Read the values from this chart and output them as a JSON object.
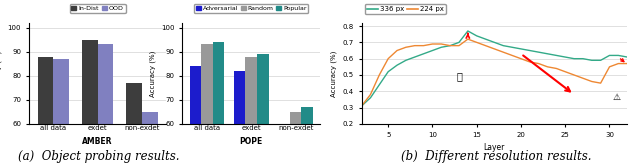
{
  "amber": {
    "categories": [
      "all data",
      "exdet",
      "non-exdet"
    ],
    "xlabel": "AMBER",
    "ylabel": "Accuracy (%)",
    "ylim": [
      60,
      102
    ],
    "yticks": [
      60,
      70,
      80,
      90,
      100
    ],
    "yticklabels": [
      "60",
      "70",
      "80",
      "90",
      "100"
    ],
    "series": {
      "In-Dist": {
        "color": "#3d3d3d",
        "values": [
          88,
          95,
          77
        ]
      },
      "OOD": {
        "color": "#8080c0",
        "values": [
          87,
          93,
          65
        ]
      }
    }
  },
  "pope": {
    "categories": [
      "all data",
      "exdet",
      "non-exdet"
    ],
    "xlabel": "POPE",
    "ylabel": "Accuracy (%)",
    "ylim": [
      60,
      102
    ],
    "yticks": [
      60,
      70,
      80,
      90,
      100
    ],
    "yticklabels": [
      "60",
      "70",
      "80",
      "90",
      "100"
    ],
    "series": {
      "Adversarial": {
        "color": "#1c1ccc",
        "values": [
          84,
          82,
          58
        ]
      },
      "Random": {
        "color": "#999999",
        "values": [
          93,
          88,
          65
        ]
      },
      "Popular": {
        "color": "#228B88",
        "values": [
          94,
          89,
          67
        ]
      }
    }
  },
  "resolution": {
    "xlabel": "Layer",
    "ylabel": "Accuracy (%)",
    "ylim": [
      0.2,
      0.82
    ],
    "yticks": [
      0.2,
      0.3,
      0.4,
      0.5,
      0.6,
      0.7,
      0.8
    ],
    "yticklabels": [
      "0.2",
      "0.3",
      "0.4",
      "0.5",
      "0.6",
      "0.7",
      "0.8"
    ],
    "xlim": [
      2,
      32
    ],
    "xticks": [
      5,
      10,
      15,
      20,
      25,
      30
    ],
    "series": {
      "336 px": {
        "color": "#33aa88",
        "x": [
          2,
          3,
          4,
          5,
          6,
          7,
          8,
          9,
          10,
          11,
          12,
          13,
          14,
          15,
          16,
          17,
          18,
          19,
          20,
          21,
          22,
          23,
          24,
          25,
          26,
          27,
          28,
          29,
          30,
          31,
          32
        ],
        "y": [
          0.31,
          0.36,
          0.44,
          0.52,
          0.56,
          0.59,
          0.61,
          0.63,
          0.65,
          0.67,
          0.68,
          0.7,
          0.77,
          0.74,
          0.72,
          0.7,
          0.68,
          0.67,
          0.66,
          0.65,
          0.64,
          0.63,
          0.62,
          0.61,
          0.6,
          0.6,
          0.59,
          0.59,
          0.62,
          0.62,
          0.61
        ]
      },
      "224 px": {
        "color": "#ee8833",
        "x": [
          2,
          3,
          4,
          5,
          6,
          7,
          8,
          9,
          10,
          11,
          12,
          13,
          14,
          15,
          16,
          17,
          18,
          19,
          20,
          21,
          22,
          23,
          24,
          25,
          26,
          27,
          28,
          29,
          30,
          31,
          32
        ],
        "y": [
          0.31,
          0.38,
          0.5,
          0.6,
          0.65,
          0.67,
          0.68,
          0.68,
          0.69,
          0.69,
          0.68,
          0.68,
          0.72,
          0.7,
          0.68,
          0.66,
          0.64,
          0.62,
          0.6,
          0.58,
          0.57,
          0.55,
          0.54,
          0.52,
          0.5,
          0.48,
          0.46,
          0.45,
          0.55,
          0.57,
          0.57
        ]
      }
    }
  },
  "caption_left": "(a)  Object probing results.",
  "caption_right": "(b)  Different resolution results.",
  "caption_fontsize": 8.5
}
